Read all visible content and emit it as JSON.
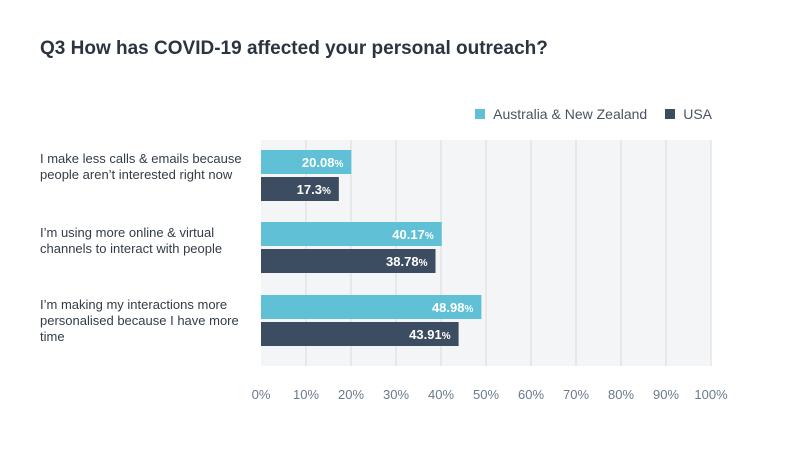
{
  "chart_data": {
    "type": "bar",
    "orientation": "horizontal",
    "title": "Q3 How has COVID-19 affected your personal outreach?",
    "categories": [
      "I make less calls & emails because people aren’t interested right now",
      "I’m using more online & virtual channels to interact with people",
      "I’m making my interactions more personalised because I have more time"
    ],
    "series": [
      {
        "name": "Australia & New Zealand",
        "color": "#5fc0d6",
        "values": [
          20.08,
          40.17,
          48.98
        ],
        "labels": [
          "20.08",
          "40.17",
          "48.98"
        ]
      },
      {
        "name": "USA",
        "color": "#3d4d61",
        "values": [
          17.3,
          38.78,
          43.91
        ],
        "labels": [
          "17.3",
          "38.78",
          "43.91"
        ]
      }
    ],
    "xlim": [
      0,
      100
    ],
    "ticks": [
      "0%",
      "10%",
      "20%",
      "30%",
      "40%",
      "50%",
      "60%",
      "70%",
      "80%",
      "90%",
      "100%"
    ],
    "value_suffix": "%",
    "grid": true,
    "legend_position": "top-right"
  },
  "colors": {
    "plot_background": "#f4f5f6",
    "grid": "#d8dbdf",
    "tick_text": "#6b7a8c"
  }
}
